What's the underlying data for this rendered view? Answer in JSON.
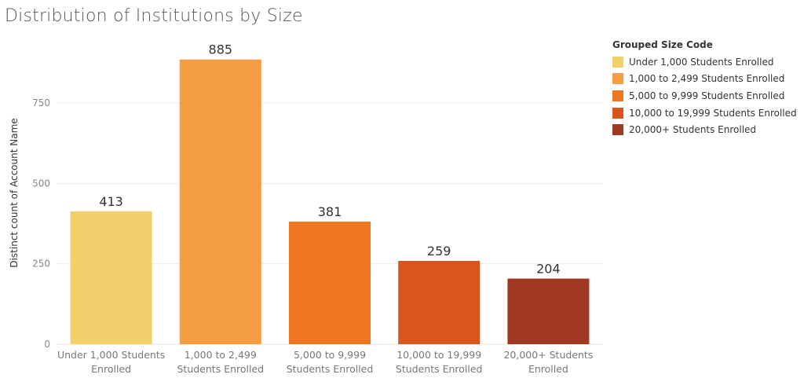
{
  "chart_data": {
    "type": "bar",
    "title": "Distribution of Institutions by Size",
    "ylabel": "Distinct count of Account Name",
    "xlabel": "",
    "ylim": [
      0,
      960
    ],
    "yticks": [
      0,
      250,
      500,
      750
    ],
    "grid": true,
    "legend_position": "right",
    "legend_title": "Grouped Size Code",
    "categories": [
      "Under 1,000 Students Enrolled",
      "1,000 to 2,499 Students Enrolled",
      "5,000 to 9,999 Students Enrolled",
      "10,000 to 19,999 Students Enrolled",
      "20,000+ Students Enrolled"
    ],
    "category_labels": [
      [
        "Under 1,000 Students",
        "Enrolled"
      ],
      [
        "1,000 to 2,499",
        "Students Enrolled"
      ],
      [
        "5,000 to 9,999",
        "Students Enrolled"
      ],
      [
        "10,000 to 19,999",
        "Students Enrolled"
      ],
      [
        "20,000+ Students",
        "Enrolled"
      ]
    ],
    "values": [
      413,
      885,
      381,
      259,
      204
    ],
    "colors": [
      "#f2d06b",
      "#f59d42",
      "#ef7521",
      "#d85520",
      "#a03822"
    ]
  }
}
